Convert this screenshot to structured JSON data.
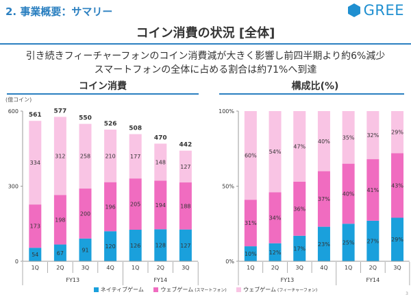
{
  "header": {
    "section_title": "2. 事業概要：サマリー",
    "logo_text": "GREE",
    "main_title": "コイン消費の状況 [全体]"
  },
  "summary": {
    "line1": "引き続きフィーチャーフォンのコイン消費減が大きく影響し前四半期より約6%減少",
    "line2": "スマートフォンの全体に占める割合は約71%へ到達"
  },
  "panels": {
    "left_title": "コイン消費",
    "right_title": "構成比(%)",
    "unit_label": "(億コイン)"
  },
  "legend": [
    {
      "label": "ネイティブゲーム",
      "sub": "",
      "color": "#1aa0dc"
    },
    {
      "label": "ウェブゲーム",
      "sub": "(スマートフォン)",
      "color": "#f06cc0"
    },
    {
      "label": "ウェブゲーム",
      "sub": "(フィーチャーフォン)",
      "color": "#f9c4e4"
    }
  ],
  "page_number": "3",
  "chart_data": [
    {
      "type": "bar",
      "stacked": true,
      "categories": [
        "1Q",
        "2Q",
        "3Q",
        "4Q",
        "1Q",
        "2Q",
        "3Q"
      ],
      "groups": [
        {
          "label": "FY13",
          "count": 4
        },
        {
          "label": "FY14",
          "count": 3
        }
      ],
      "series": [
        {
          "name": "ネイティブゲーム",
          "values": [
            54,
            67,
            91,
            120,
            126,
            128,
            127
          ],
          "color": "#1aa0dc"
        },
        {
          "name": "ウェブゲーム (スマートフォン)",
          "values": [
            173,
            198,
            200,
            196,
            205,
            194,
            188
          ],
          "color": "#f06cc0"
        },
        {
          "name": "ウェブゲーム (フィーチャーフォン)",
          "values": [
            334,
            312,
            258,
            210,
            177,
            148,
            127
          ],
          "color": "#f9c4e4"
        }
      ],
      "totals": [
        561,
        577,
        550,
        526,
        508,
        470,
        442
      ],
      "ylim": [
        0,
        600
      ],
      "yticks": [
        "0",
        "300",
        "600"
      ],
      "ytick_values": [
        0,
        300,
        600
      ],
      "ylabel": "(億コイン)",
      "grid": false
    },
    {
      "type": "bar",
      "stacked": true,
      "percent": true,
      "categories": [
        "1Q",
        "2Q",
        "3Q",
        "4Q",
        "1Q",
        "2Q",
        "3Q"
      ],
      "groups": [
        {
          "label": "FY13",
          "count": 4
        },
        {
          "label": "FY14",
          "count": 3
        }
      ],
      "series": [
        {
          "name": "ネイティブゲーム",
          "values": [
            10,
            12,
            17,
            23,
            25,
            27,
            29
          ],
          "color": "#1aa0dc"
        },
        {
          "name": "ウェブゲーム (スマートフォン)",
          "values": [
            31,
            34,
            36,
            37,
            40,
            41,
            43
          ],
          "color": "#f06cc0"
        },
        {
          "name": "ウェブゲーム (フィーチャーフォン)",
          "values": [
            60,
            54,
            47,
            40,
            35,
            32,
            29
          ],
          "color": "#f9c4e4"
        }
      ],
      "ylim": [
        0,
        100
      ],
      "yticks": [
        "0%",
        "50%",
        "100%"
      ],
      "ytick_values": [
        0,
        50,
        100
      ],
      "grid": false
    }
  ]
}
